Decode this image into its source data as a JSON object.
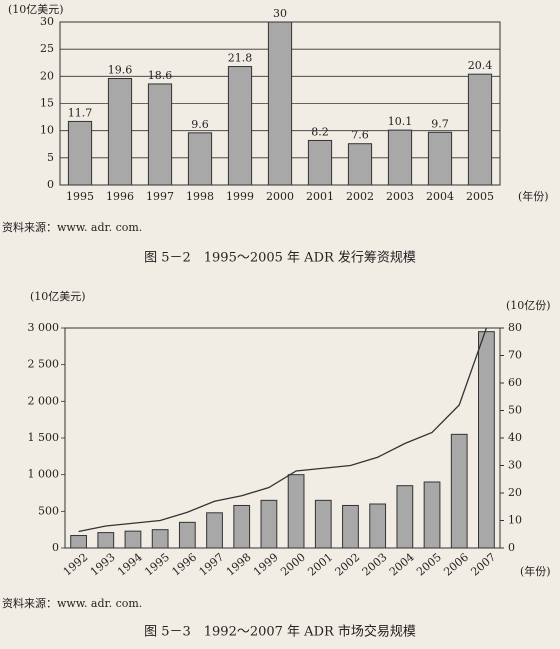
{
  "chart_data": [
    {
      "type": "bar",
      "ylabel": "(10亿美元)",
      "xlabel": "(年份)",
      "categories": [
        "1995",
        "1996",
        "1997",
        "1998",
        "1999",
        "2000",
        "2001",
        "2002",
        "2003",
        "2004",
        "2005"
      ],
      "values": [
        11.7,
        19.6,
        18.6,
        9.6,
        21.8,
        30,
        8.2,
        7.6,
        10.1,
        9.7,
        20.4
      ],
      "color": "#a8a8a8",
      "ylim": [
        0,
        30
      ],
      "yticks": [
        0,
        5,
        10,
        15,
        20,
        25,
        30
      ],
      "grid": true,
      "source": "资料来源：www. adr. com.",
      "caption": "图 5－2　1995～2005 年 ADR 发行筹资规模"
    },
    {
      "type": "bar",
      "ylabel": "(10亿美元)",
      "y2label": "(10亿份)",
      "xlabel": "(年份)",
      "categories": [
        "1992",
        "1993",
        "1994",
        "1995",
        "1996",
        "1997",
        "1998",
        "1999",
        "2000",
        "2001",
        "2002",
        "2003",
        "2004",
        "2005",
        "2006",
        "2007"
      ],
      "series": [
        {
          "color": "#a8a8a8",
          "values": [
            170,
            210,
            230,
            250,
            350,
            480,
            580,
            650,
            1000,
            650,
            580,
            600,
            850,
            900,
            1550,
            2950
          ]
        },
        {
          "type": "line",
          "axis": "y2",
          "color": "#333333",
          "values": [
            6,
            8,
            9,
            10,
            13,
            17,
            19,
            22,
            28,
            29,
            30,
            33,
            38,
            42,
            52,
            80
          ]
        }
      ],
      "ylim": [
        0,
        3000
      ],
      "yticks": [
        0,
        500,
        {
          "value": 1000,
          "label": "1 000"
        },
        {
          "value": 1500,
          "label": "1 500"
        },
        {
          "value": 2000,
          "label": "2 000"
        },
        {
          "value": 2500,
          "label": "2 500"
        },
        {
          "value": 3000,
          "label": "3 000"
        }
      ],
      "y2lim": [
        0,
        80
      ],
      "y2ticks": [
        0,
        10,
        20,
        30,
        40,
        50,
        60,
        70,
        80
      ],
      "grid": false,
      "source": "资料来源：www. adr. com.",
      "caption": "图 5－3　1992～2007 年 ADR 市场交易规模"
    }
  ]
}
